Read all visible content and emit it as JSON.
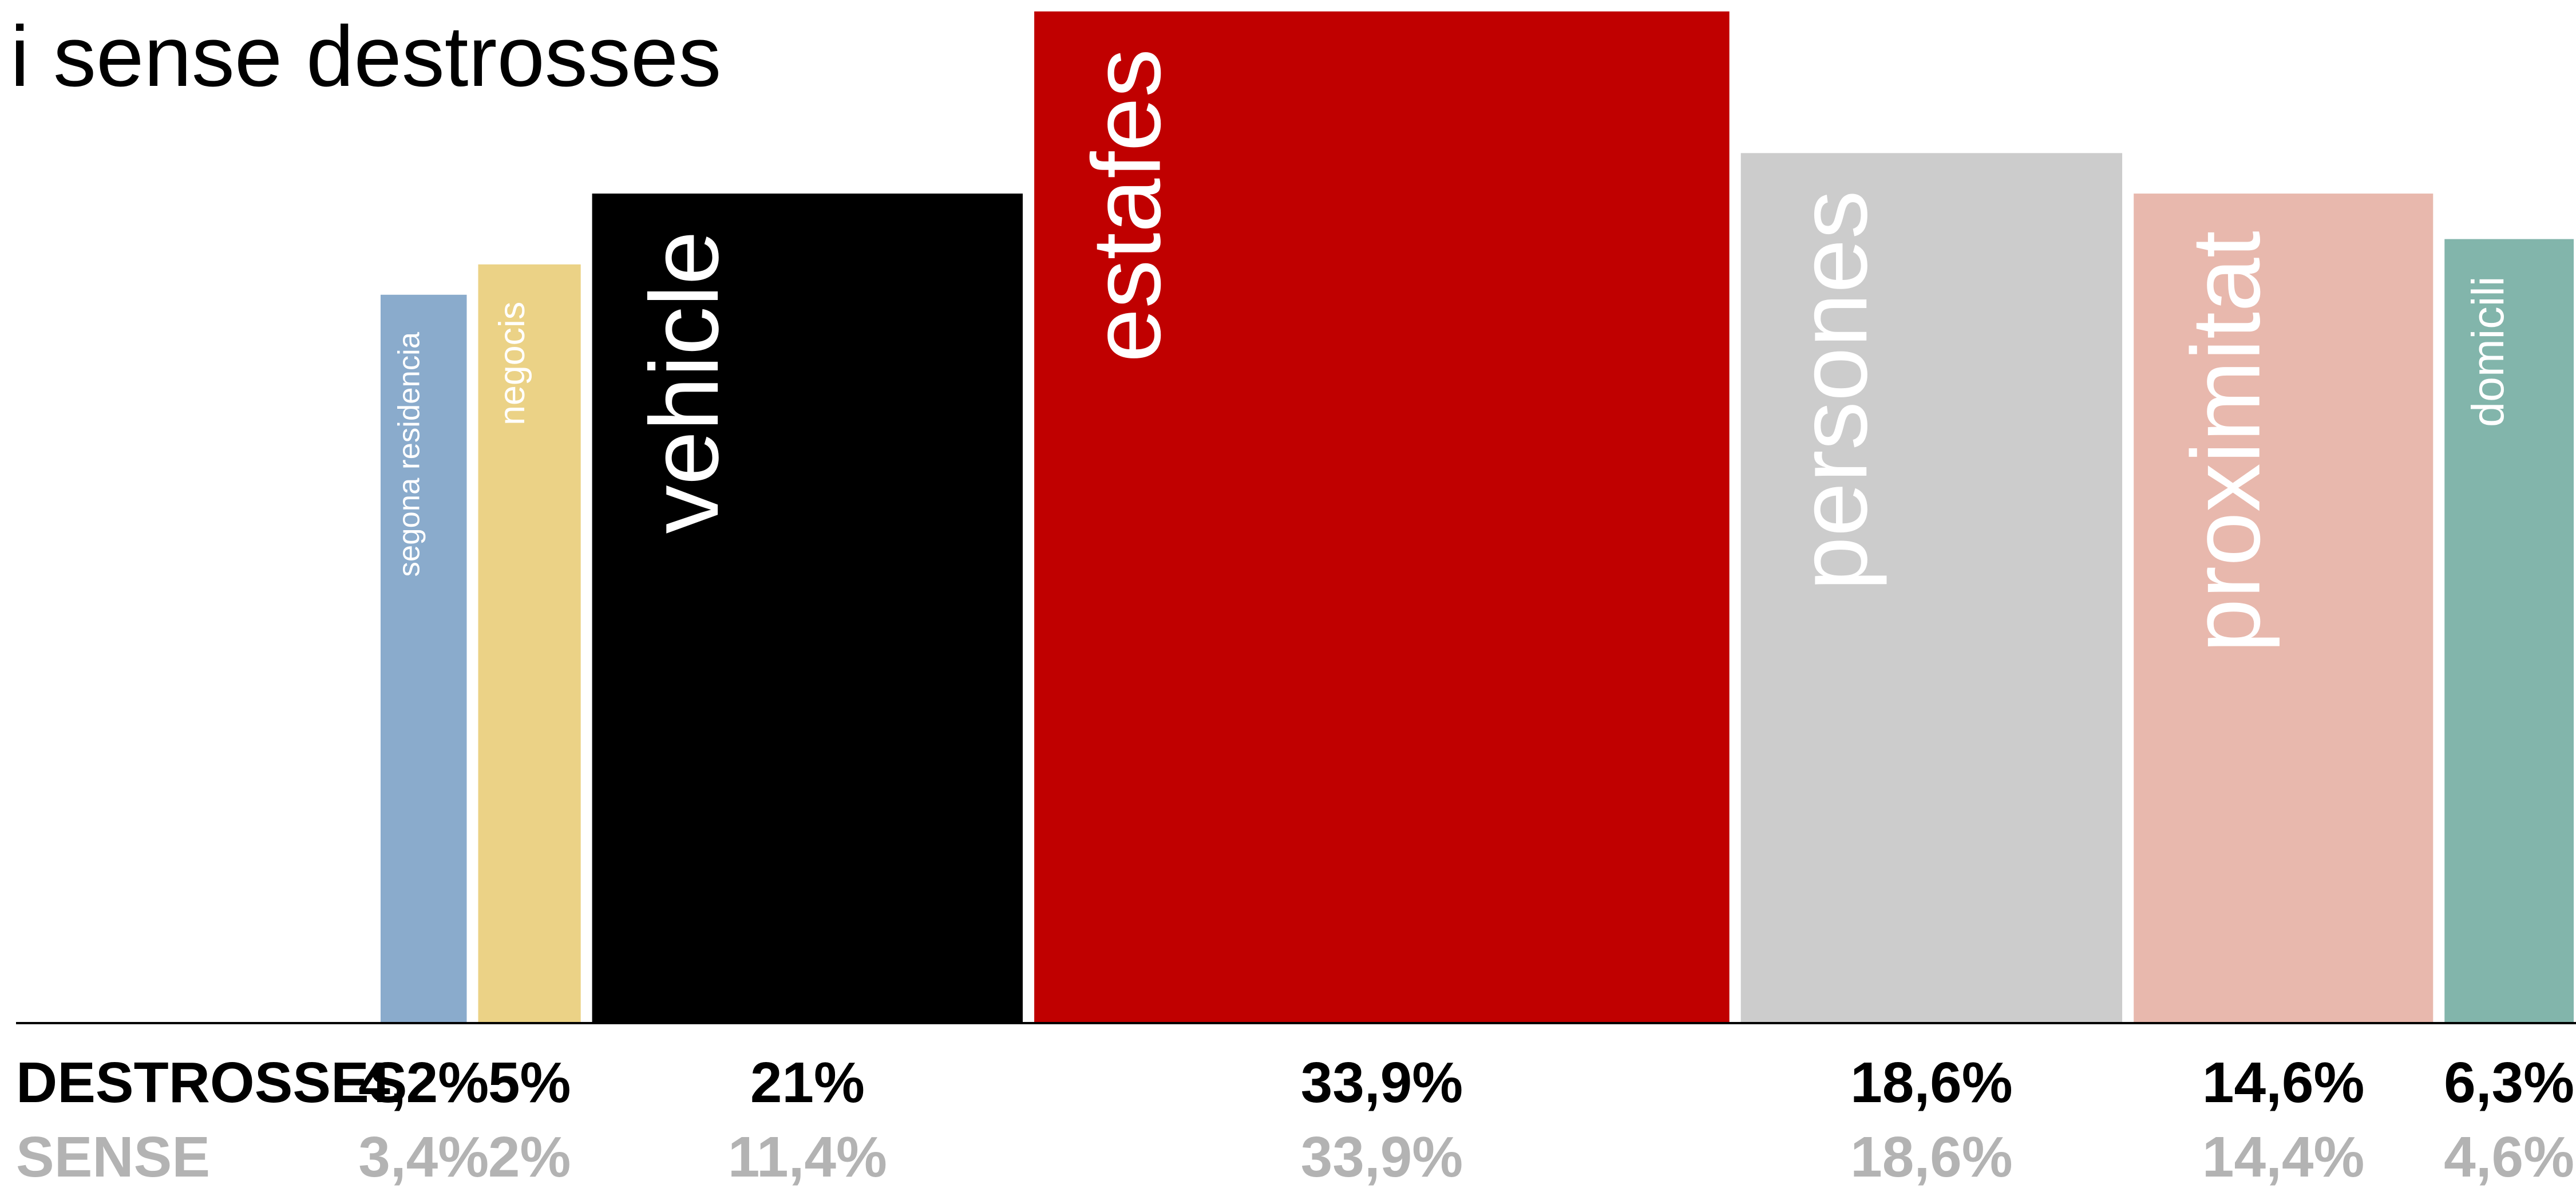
{
  "chart_data": {
    "type": "bar",
    "variable_width": true,
    "title": "i sense destrosses",
    "categories": [
      "segona residencia",
      "negocis",
      "vehicle",
      "estafes",
      "persones",
      "proximitat",
      "domicili"
    ],
    "bar_width_series": "DESTROSSES",
    "series": [
      {
        "name": "DESTROSSES",
        "values": [
          4.2,
          5,
          21,
          33.9,
          18.6,
          14.6,
          6.3
        ],
        "labels": [
          "4,2%",
          "5%",
          "21%",
          "33,9%",
          "18,6%",
          "14,6%",
          "6,3%"
        ]
      },
      {
        "name": "SENSE",
        "values": [
          3.4,
          2,
          11.4,
          33.9,
          18.6,
          14.4,
          4.6
        ],
        "labels": [
          "3,4%",
          "2%",
          "11,4%",
          "33,9%",
          "18,6%",
          "14,4%",
          "4,6%"
        ]
      }
    ],
    "bar_heights_pct": [
      72,
      75,
      82,
      100,
      86,
      82,
      77.5
    ],
    "colors": [
      "#8aabcc",
      "#ebd286",
      "#000000",
      "#c00000",
      "#cccccc",
      "#e8b8ad",
      "#82b5ab"
    ],
    "label_colors": [
      "#ffffff",
      "#ffffff",
      "#ffffff",
      "#ffffff",
      "#ffffff",
      "#ffffff",
      "#ffffff"
    ],
    "row_colors": {
      "DESTROSSES": "#000000",
      "SENSE": "#b3b3b3"
    },
    "baseline_color": "#000000",
    "grid": false,
    "legend": "none"
  }
}
